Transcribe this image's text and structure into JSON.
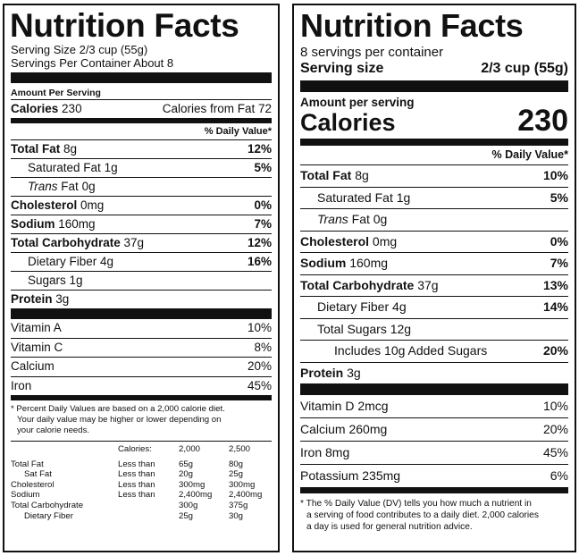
{
  "old_label": {
    "title": "Nutrition Facts",
    "serving_size": "Serving Size 2/3 cup (55g)",
    "servings_per_container": "Servings Per Container About 8",
    "amount_per_serving": "Amount Per Serving",
    "calories_label": "Calories",
    "calories_value": "230",
    "calories_from_fat": "Calories from Fat 72",
    "daily_value_header": "% Daily Value*",
    "nutrients": [
      {
        "name": "Total Fat",
        "amount": "8g",
        "dv": "12%"
      },
      {
        "name": "Saturated Fat",
        "amount": "1g",
        "dv": "5%"
      },
      {
        "name": "Trans",
        "name_suffix": "Fat",
        "amount": "0g",
        "dv": ""
      },
      {
        "name": "Cholesterol",
        "amount": "0mg",
        "dv": "0%"
      },
      {
        "name": "Sodium",
        "amount": "160mg",
        "dv": "7%"
      },
      {
        "name": "Total Carbohydrate",
        "amount": "37g",
        "dv": "12%"
      },
      {
        "name": "Dietary Fiber",
        "amount": "4g",
        "dv": "16%"
      },
      {
        "name": "Sugars",
        "amount": "1g",
        "dv": ""
      },
      {
        "name": "Protein",
        "amount": "3g",
        "dv": ""
      }
    ],
    "vitamins": [
      {
        "name": "Vitamin A",
        "dv": "10%"
      },
      {
        "name": "Vitamin C",
        "dv": "8%"
      },
      {
        "name": "Calcium",
        "dv": "20%"
      },
      {
        "name": "Iron",
        "dv": "45%"
      }
    ],
    "footnote_line1": "* Percent Daily Values are based on a 2,000 calorie diet.",
    "footnote_line2": "Your daily value may be higher or lower depending on",
    "footnote_line3": "your calorie needs.",
    "dv_table": {
      "header": [
        "",
        "Calories:",
        "2,000",
        "2,500"
      ],
      "rows": [
        [
          "Total Fat",
          "Less than",
          "65g",
          "80g"
        ],
        [
          "Sat Fat",
          "Less than",
          "20g",
          "25g"
        ],
        [
          "Cholesterol",
          "Less than",
          "300mg",
          "300mg"
        ],
        [
          "Sodium",
          "Less than",
          "2,400mg",
          "2,400mg"
        ],
        [
          "Total Carbohydrate",
          "",
          "300g",
          "375g"
        ],
        [
          "Dietary Fiber",
          "",
          "25g",
          "30g"
        ]
      ]
    }
  },
  "new_label": {
    "title": "Nutrition Facts",
    "servings_per_container": "8 servings per container",
    "serving_size_label": "Serving size",
    "serving_size_value": "2/3 cup (55g)",
    "amount_per_serving": "Amount per serving",
    "calories_label": "Calories",
    "calories_value": "230",
    "daily_value_header": "% Daily Value*",
    "nutrients": [
      {
        "name": "Total Fat",
        "amount": "8g",
        "dv": "10%"
      },
      {
        "name": "Saturated Fat",
        "amount": "1g",
        "dv": "5%"
      },
      {
        "name": "Trans",
        "name_suffix": "Fat",
        "amount": "0g",
        "dv": ""
      },
      {
        "name": "Cholesterol",
        "amount": "0mg",
        "dv": "0%"
      },
      {
        "name": "Sodium",
        "amount": "160mg",
        "dv": "7%"
      },
      {
        "name": "Total Carbohydrate",
        "amount": "37g",
        "dv": "13%"
      },
      {
        "name": "Dietary Fiber",
        "amount": "4g",
        "dv": "14%"
      },
      {
        "name": "Total Sugars",
        "amount": "12g",
        "dv": ""
      },
      {
        "name": "Includes 10g Added Sugars",
        "amount": "",
        "dv": "20%"
      },
      {
        "name": "Protein",
        "amount": "3g",
        "dv": ""
      }
    ],
    "vitamins": [
      {
        "name": "Vitamin D 2mcg",
        "dv": "10%"
      },
      {
        "name": "Calcium 260mg",
        "dv": "20%"
      },
      {
        "name": "Iron 8mg",
        "dv": "45%"
      },
      {
        "name": "Potassium 235mg",
        "dv": "6%"
      }
    ],
    "footnote_line1": "* The % Daily Value (DV) tells you how much a nutrient in",
    "footnote_line2": "a serving of food contributes to a daily diet. 2,000 calories",
    "footnote_line3": "a day is used for general nutrition advice."
  }
}
